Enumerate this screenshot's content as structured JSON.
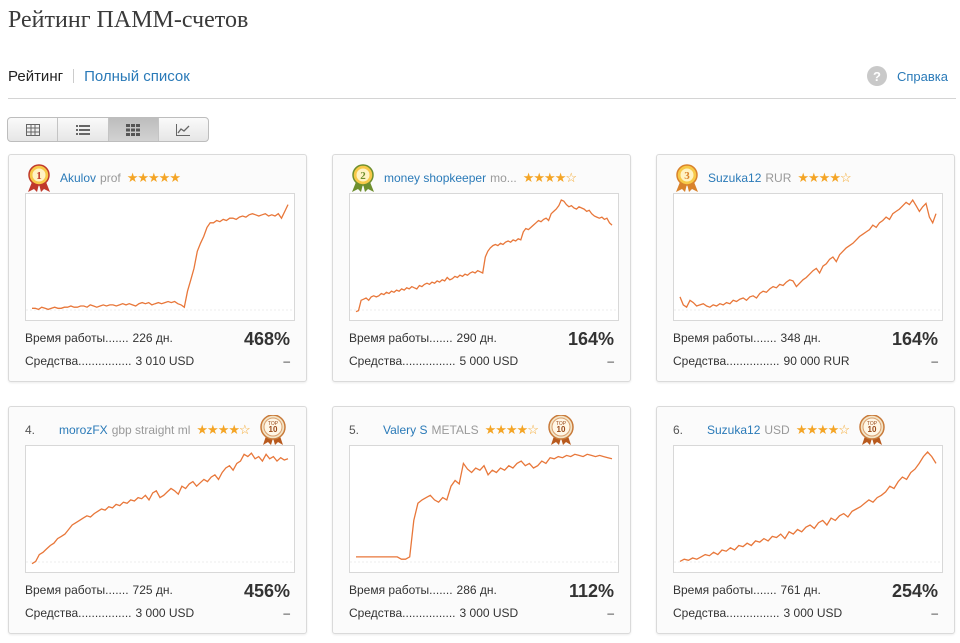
{
  "page_title": "Рейтинг ПАММ-счетов",
  "tabs": {
    "active": "Рейтинг",
    "link": "Полный список"
  },
  "help": {
    "icon": "?",
    "label": "Справка"
  },
  "view_switcher": [
    "table-view-icon",
    "list-view-icon",
    "grid-view-icon",
    "chart-view-icon"
  ],
  "colors": {
    "link": "#2a7ab8",
    "chart_line": "#e8773a",
    "stars": "#f4a526",
    "gold": "#f0b43c",
    "green": "#7d9a3c",
    "orange": "#e09030"
  },
  "labels": {
    "work_time": "Время работы.......",
    "funds": "Средства................",
    "dash": "–"
  },
  "cards": [
    {
      "rank_badge": "1",
      "medal": "red",
      "name": "Akulov",
      "suffix": "prof",
      "stars": "★★★★★",
      "work_time": "226 дн.",
      "funds": "3 010 USD",
      "profit": "468%",
      "chart": [
        5,
        5,
        4,
        6,
        5,
        4,
        5,
        6,
        5,
        5,
        6,
        6,
        7,
        6,
        6,
        7,
        7,
        6,
        8,
        7,
        6,
        7,
        8,
        7,
        8,
        8,
        7,
        8,
        9,
        8,
        9,
        8,
        7,
        9,
        10,
        9,
        10,
        8,
        9,
        10,
        9,
        10,
        11,
        10,
        11,
        9,
        8,
        6,
        20,
        30,
        40,
        55,
        62,
        68,
        76,
        80,
        80,
        82,
        81,
        83,
        82,
        84,
        84,
        83,
        85,
        86,
        85,
        87,
        88,
        87,
        86,
        87,
        88,
        86,
        87,
        86,
        88,
        84,
        90,
        96
      ]
    },
    {
      "rank_badge": "2",
      "medal": "green",
      "name": "money shopkeeper",
      "suffix": "mo...",
      "stars": "★★★★☆",
      "work_time": "290 дн.",
      "funds": "5 000 USD",
      "profit": "164%",
      "chart": [
        2,
        3,
        12,
        13,
        14,
        12,
        15,
        16,
        15,
        16,
        18,
        17,
        19,
        18,
        20,
        19,
        21,
        20,
        22,
        21,
        23,
        22,
        24,
        23,
        22,
        25,
        24,
        26,
        27,
        26,
        28,
        27,
        29,
        28,
        30,
        29,
        32,
        30,
        31,
        33,
        32,
        34,
        33,
        35,
        34,
        36,
        37,
        36,
        38,
        37,
        36,
        50,
        55,
        58,
        60,
        61,
        60,
        62,
        61,
        63,
        64,
        63,
        65,
        64,
        66,
        65,
        72,
        75,
        74,
        76,
        78,
        80,
        82,
        81,
        83,
        84,
        82,
        88,
        90,
        92,
        95,
        100,
        99,
        96,
        94,
        95,
        93,
        92,
        94,
        93,
        92,
        90,
        91,
        88,
        86,
        85,
        84,
        85,
        83,
        84,
        80,
        78
      ]
    },
    {
      "rank_badge": "3",
      "medal": "orange",
      "name": "Suzuka12",
      "suffix": "RUR",
      "stars": "★★★★☆",
      "work_time": "348 дн.",
      "funds": "90 000 RUR",
      "profit": "164%",
      "chart": [
        15,
        8,
        6,
        12,
        10,
        7,
        8,
        9,
        7,
        6,
        8,
        7,
        9,
        8,
        10,
        9,
        12,
        11,
        13,
        14,
        12,
        15,
        16,
        14,
        18,
        20,
        19,
        22,
        24,
        23,
        26,
        25,
        28,
        30,
        29,
        24,
        27,
        30,
        32,
        35,
        38,
        40,
        36,
        42,
        44,
        48,
        50,
        46,
        52,
        55,
        58,
        60,
        62,
        65,
        68,
        70,
        72,
        74,
        78,
        76,
        80,
        82,
        85,
        83,
        88,
        90,
        92,
        95,
        98,
        96,
        100,
        95,
        90,
        94,
        97,
        85,
        80,
        88
      ]
    },
    {
      "rank_badge": "4.",
      "medal": "none",
      "name": "morozFX",
      "suffix": "gbp straight ml",
      "stars": "★★★★☆",
      "top10": true,
      "work_time": "725 дн.",
      "funds": "3 000 USD",
      "profit": "456%",
      "chart": [
        2,
        4,
        10,
        12,
        15,
        18,
        20,
        24,
        26,
        28,
        32,
        36,
        38,
        40,
        42,
        44,
        43,
        46,
        48,
        50,
        49,
        52,
        51,
        54,
        53,
        56,
        55,
        58,
        57,
        60,
        59,
        62,
        58,
        64,
        66,
        60,
        62,
        65,
        68,
        66,
        63,
        70,
        68,
        72,
        74,
        70,
        73,
        76,
        74,
        78,
        80,
        76,
        82,
        86,
        88,
        84,
        90,
        92,
        98,
        96,
        99,
        94,
        96,
        92,
        98,
        94,
        96,
        92,
        95,
        93,
        94
      ]
    },
    {
      "rank_badge": "5.",
      "medal": "none",
      "name": "Valery S",
      "suffix": "METALS",
      "stars": "★★★★☆",
      "top10": true,
      "work_time": "286 дн.",
      "funds": "3 000 USD",
      "profit": "112%",
      "chart": [
        8,
        8,
        8,
        8,
        8,
        8,
        8,
        8,
        8,
        8,
        8,
        6,
        6,
        8,
        40,
        55,
        58,
        60,
        62,
        58,
        56,
        60,
        58,
        70,
        75,
        72,
        90,
        85,
        82,
        86,
        84,
        88,
        80,
        84,
        82,
        86,
        84,
        88,
        86,
        90,
        92,
        88,
        90,
        86,
        88,
        92,
        90,
        95,
        94,
        96,
        95,
        97,
        96,
        98,
        97,
        96,
        98,
        97,
        96,
        97,
        96,
        95,
        94
      ]
    },
    {
      "rank_badge": "6.",
      "medal": "none",
      "name": "Suzuka12",
      "suffix": "USD",
      "stars": "★★★★☆",
      "top10": true,
      "work_time": "761 дн.",
      "funds": "3 000 USD",
      "profit": "254%",
      "chart": [
        4,
        6,
        5,
        7,
        6,
        8,
        10,
        9,
        12,
        10,
        14,
        13,
        16,
        14,
        18,
        17,
        20,
        18,
        22,
        21,
        24,
        22,
        26,
        25,
        28,
        24,
        30,
        28,
        32,
        30,
        34,
        36,
        33,
        38,
        40,
        36,
        42,
        40,
        44,
        46,
        43,
        48,
        50,
        52,
        55,
        58,
        56,
        60,
        62,
        65,
        70,
        68,
        74,
        78,
        76,
        82,
        85,
        90,
        96,
        100,
        96,
        90
      ]
    }
  ]
}
